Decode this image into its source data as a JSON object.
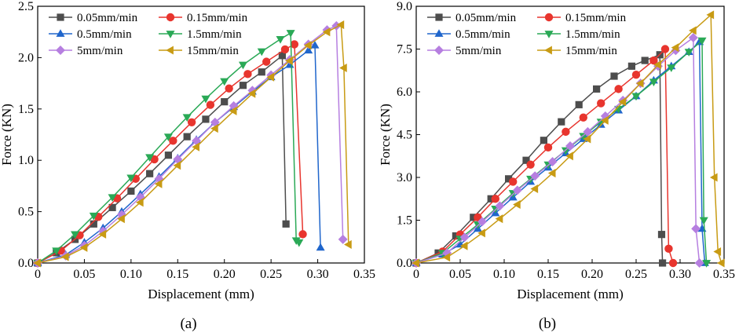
{
  "chart_data": [
    {
      "type": "line",
      "panel_caption": "(a)",
      "xlabel": "Displacement (mm)",
      "ylabel": "Force (KN)",
      "xlim": [
        0,
        0.35
      ],
      "ylim": [
        0,
        2.5
      ],
      "xticks": [
        0,
        0.05,
        0.1,
        0.15,
        0.2,
        0.25,
        0.3,
        0.35
      ],
      "xtick_labels": [
        "0",
        "0.05",
        "0.10",
        "0.15",
        "0.20",
        "0.25",
        "0.30",
        "0.35"
      ],
      "yticks": [
        0,
        0.5,
        1.0,
        1.5,
        2.0,
        2.5
      ],
      "ytick_labels": [
        "0.0",
        "0.5",
        "1.0",
        "1.5",
        "2.0",
        "2.5"
      ],
      "legend_position": "top-left",
      "series": [
        {
          "name": "0.05mm/min",
          "color": "#4d4d4d",
          "marker": "square",
          "x": [
            0,
            0.02,
            0.04,
            0.06,
            0.08,
            0.1,
            0.12,
            0.14,
            0.16,
            0.18,
            0.2,
            0.22,
            0.24,
            0.262,
            0.266
          ],
          "y": [
            0,
            0.1,
            0.23,
            0.38,
            0.54,
            0.7,
            0.87,
            1.05,
            1.23,
            1.4,
            1.57,
            1.73,
            1.86,
            2.02,
            0.38
          ]
        },
        {
          "name": "0.15mm/min",
          "color": "#e8352e",
          "marker": "circle",
          "x": [
            0,
            0.025,
            0.045,
            0.065,
            0.085,
            0.105,
            0.125,
            0.145,
            0.165,
            0.185,
            0.205,
            0.225,
            0.245,
            0.265,
            0.275,
            0.284
          ],
          "y": [
            0,
            0.12,
            0.27,
            0.45,
            0.63,
            0.82,
            1.01,
            1.19,
            1.37,
            1.54,
            1.7,
            1.84,
            1.96,
            2.08,
            2.13,
            0.28
          ]
        },
        {
          "name": "0.5mm/min",
          "color": "#2066cc",
          "marker": "triangle-up",
          "x": [
            0,
            0.03,
            0.05,
            0.07,
            0.09,
            0.11,
            0.13,
            0.15,
            0.17,
            0.19,
            0.21,
            0.23,
            0.25,
            0.27,
            0.29,
            0.297,
            0.303
          ],
          "y": [
            0,
            0.08,
            0.2,
            0.34,
            0.5,
            0.67,
            0.84,
            1.02,
            1.2,
            1.37,
            1.52,
            1.67,
            1.81,
            1.93,
            2.07,
            2.12,
            0.15
          ]
        },
        {
          "name": "1.5mm/min",
          "color": "#2aa956",
          "marker": "triangle-down",
          "x": [
            0,
            0.02,
            0.04,
            0.06,
            0.08,
            0.1,
            0.12,
            0.14,
            0.16,
            0.18,
            0.2,
            0.22,
            0.24,
            0.26,
            0.271,
            0.277,
            0.28
          ],
          "y": [
            0,
            0.12,
            0.28,
            0.46,
            0.64,
            0.83,
            1.03,
            1.23,
            1.42,
            1.6,
            1.77,
            1.93,
            2.06,
            2.18,
            2.24,
            0.22,
            0.2
          ]
        },
        {
          "name": "5mm/min",
          "color": "#b67fe0",
          "marker": "diamond",
          "x": [
            0,
            0.03,
            0.05,
            0.07,
            0.09,
            0.11,
            0.13,
            0.15,
            0.17,
            0.19,
            0.21,
            0.23,
            0.25,
            0.27,
            0.29,
            0.31,
            0.32,
            0.327
          ],
          "y": [
            0,
            0.07,
            0.17,
            0.31,
            0.47,
            0.64,
            0.82,
            1.01,
            1.19,
            1.37,
            1.53,
            1.68,
            1.83,
            1.98,
            2.13,
            2.27,
            2.31,
            0.23
          ]
        },
        {
          "name": "15mm/min",
          "color": "#c89b14",
          "marker": "triangle-left",
          "x": [
            0,
            0.03,
            0.05,
            0.07,
            0.09,
            0.11,
            0.13,
            0.15,
            0.17,
            0.19,
            0.21,
            0.23,
            0.25,
            0.27,
            0.29,
            0.31,
            0.325,
            0.328,
            0.333
          ],
          "y": [
            0,
            0.06,
            0.15,
            0.28,
            0.43,
            0.59,
            0.77,
            0.95,
            1.13,
            1.31,
            1.48,
            1.65,
            1.81,
            1.97,
            2.12,
            2.25,
            2.32,
            1.9,
            0.18
          ]
        }
      ]
    },
    {
      "type": "line",
      "panel_caption": "(b)",
      "xlabel": "Displacement (mm)",
      "ylabel": "Force (KN)",
      "xlim": [
        0,
        0.35
      ],
      "ylim": [
        0,
        9.0
      ],
      "xticks": [
        0,
        0.05,
        0.1,
        0.15,
        0.2,
        0.25,
        0.3,
        0.35
      ],
      "xtick_labels": [
        "0",
        "0.05",
        "0.10",
        "0.15",
        "0.20",
        "0.25",
        "0.30",
        "0.35"
      ],
      "yticks": [
        0,
        1.5,
        3.0,
        4.5,
        6.0,
        7.5,
        9.0
      ],
      "ytick_labels": [
        "0.0",
        "1.5",
        "3.0",
        "4.5",
        "6.0",
        "7.5",
        "9.0"
      ],
      "legend_position": "top-left",
      "series": [
        {
          "name": "0.05mm/min",
          "color": "#4d4d4d",
          "marker": "square",
          "x": [
            0,
            0.025,
            0.045,
            0.065,
            0.085,
            0.105,
            0.125,
            0.145,
            0.165,
            0.185,
            0.205,
            0.225,
            0.245,
            0.26,
            0.277,
            0.279,
            0.28
          ],
          "y": [
            0,
            0.35,
            0.95,
            1.6,
            2.25,
            2.95,
            3.6,
            4.3,
            4.95,
            5.55,
            6.1,
            6.55,
            6.9,
            7.1,
            7.3,
            1.0,
            0
          ]
        },
        {
          "name": "0.15mm/min",
          "color": "#e8352e",
          "marker": "circle",
          "x": [
            0,
            0.03,
            0.05,
            0.07,
            0.09,
            0.11,
            0.13,
            0.15,
            0.17,
            0.19,
            0.21,
            0.23,
            0.25,
            0.27,
            0.283,
            0.287,
            0.292
          ],
          "y": [
            0,
            0.4,
            1.0,
            1.6,
            2.25,
            2.85,
            3.45,
            4.05,
            4.6,
            5.1,
            5.6,
            6.1,
            6.6,
            7.1,
            7.5,
            0.5,
            0
          ]
        },
        {
          "name": "0.5mm/min",
          "color": "#2066cc",
          "marker": "triangle-up",
          "x": [
            0,
            0.03,
            0.05,
            0.07,
            0.09,
            0.11,
            0.13,
            0.15,
            0.17,
            0.19,
            0.21,
            0.23,
            0.25,
            0.27,
            0.29,
            0.31,
            0.322,
            0.325,
            0.328
          ],
          "y": [
            0,
            0.3,
            0.65,
            1.2,
            1.75,
            2.3,
            2.85,
            3.35,
            3.85,
            4.35,
            4.85,
            5.35,
            5.85,
            6.4,
            6.9,
            7.4,
            7.75,
            1.2,
            0
          ]
        },
        {
          "name": "1.5mm/min",
          "color": "#2aa956",
          "marker": "triangle-down",
          "x": [
            0,
            0.03,
            0.05,
            0.07,
            0.09,
            0.11,
            0.13,
            0.15,
            0.17,
            0.19,
            0.21,
            0.23,
            0.25,
            0.27,
            0.29,
            0.31,
            0.325,
            0.327,
            0.33
          ],
          "y": [
            0,
            0.35,
            0.85,
            1.35,
            1.9,
            2.45,
            2.95,
            3.45,
            3.95,
            4.45,
            4.95,
            5.4,
            5.85,
            6.35,
            6.85,
            7.4,
            7.8,
            1.5,
            0
          ]
        },
        {
          "name": "5mm/min",
          "color": "#b67fe0",
          "marker": "diamond",
          "x": [
            0,
            0.035,
            0.055,
            0.075,
            0.095,
            0.115,
            0.135,
            0.155,
            0.175,
            0.195,
            0.215,
            0.235,
            0.255,
            0.275,
            0.295,
            0.315,
            0.318,
            0.322
          ],
          "y": [
            0,
            0.35,
            0.9,
            1.45,
            2.0,
            2.55,
            3.05,
            3.55,
            4.1,
            4.6,
            5.15,
            5.7,
            6.3,
            6.9,
            7.45,
            7.9,
            1.2,
            0
          ]
        },
        {
          "name": "15mm/min",
          "color": "#c89b14",
          "marker": "triangle-left",
          "x": [
            0,
            0.035,
            0.055,
            0.075,
            0.095,
            0.115,
            0.135,
            0.155,
            0.175,
            0.195,
            0.215,
            0.235,
            0.255,
            0.275,
            0.295,
            0.315,
            0.335,
            0.339,
            0.343,
            0.347
          ],
          "y": [
            0,
            0.2,
            0.6,
            1.05,
            1.55,
            2.05,
            2.6,
            3.15,
            3.75,
            4.35,
            5.0,
            5.65,
            6.3,
            6.95,
            7.55,
            8.15,
            8.7,
            3.0,
            0.4,
            0
          ]
        }
      ]
    }
  ]
}
